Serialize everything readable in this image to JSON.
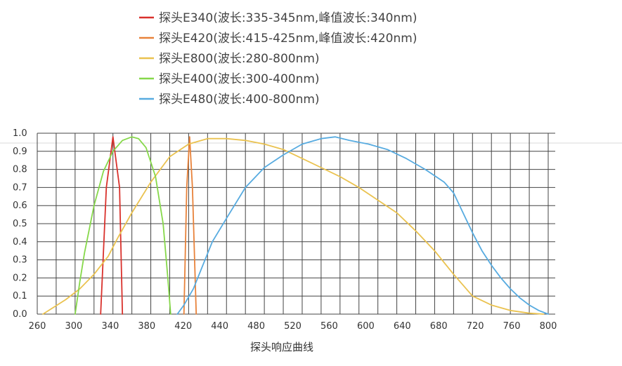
{
  "chart_data": {
    "type": "line",
    "title": "",
    "xlabel": "探头响应曲线",
    "ylabel": "",
    "xlim": [
      260,
      800
    ],
    "ylim": [
      0.0,
      1.0
    ],
    "grid": true,
    "legend_position": "top",
    "x_ticks": [
      "260",
      "300",
      "340",
      "380",
      "420",
      "440",
      "480",
      "520",
      "560",
      "600",
      "640",
      "680",
      "720",
      "760",
      "800"
    ],
    "x_tick_values": [
      260,
      300,
      340,
      380,
      420,
      440,
      480,
      520,
      560,
      600,
      640,
      680,
      720,
      760,
      800
    ],
    "y_ticks": [
      "0.0",
      "0.1",
      "0.2",
      "0.3",
      "0.4",
      "0.5",
      "0.6",
      "0.7",
      "0.8",
      "0.9",
      "1.0"
    ],
    "y_tick_values": [
      0.0,
      0.1,
      0.2,
      0.3,
      0.4,
      0.5,
      0.6,
      0.7,
      0.8,
      0.9,
      1.0
    ],
    "series": [
      {
        "name": "探头E340(波长:335-345nm,峰值波长:340nm)",
        "color": "#d9312c",
        "x": [
          327,
          333,
          340,
          347,
          350
        ],
        "y": [
          0.0,
          0.7,
          0.98,
          0.7,
          0.0
        ]
      },
      {
        "name": "探头E420(波长:415-425nm,峰值波长:420nm)",
        "color": "#e8823a",
        "x": [
          415,
          418,
          421,
          424,
          428
        ],
        "y": [
          0.0,
          0.7,
          0.98,
          0.7,
          0.0
        ]
      },
      {
        "name": "探头E800(波长:280-800nm)",
        "color": "#eac24f",
        "x": [
          266,
          275,
          290,
          305,
          320,
          335,
          345,
          360,
          380,
          400,
          420,
          440,
          460,
          480,
          500,
          520,
          540,
          560,
          580,
          600,
          620,
          640,
          660,
          680,
          700,
          720,
          740,
          760,
          780,
          795
        ],
        "y": [
          0.0,
          0.03,
          0.08,
          0.14,
          0.22,
          0.32,
          0.42,
          0.56,
          0.73,
          0.87,
          0.94,
          0.97,
          0.97,
          0.96,
          0.94,
          0.91,
          0.86,
          0.81,
          0.76,
          0.7,
          0.63,
          0.56,
          0.46,
          0.35,
          0.22,
          0.1,
          0.05,
          0.02,
          0.005,
          0.0
        ]
      },
      {
        "name": "探头E400(波长:300-400nm)",
        "color": "#86d84a",
        "x": [
          300,
          305,
          310,
          320,
          330,
          340,
          350,
          360,
          367,
          375,
          385,
          393,
          398,
          401
        ],
        "y": [
          0.0,
          0.18,
          0.34,
          0.6,
          0.79,
          0.9,
          0.96,
          0.98,
          0.97,
          0.92,
          0.76,
          0.5,
          0.2,
          0.0
        ]
      },
      {
        "name": "探头E480(波长:400-800nm)",
        "color": "#57abe0",
        "x": [
          408,
          415,
          425,
          435,
          445,
          460,
          480,
          500,
          520,
          540,
          560,
          575,
          590,
          610,
          630,
          650,
          670,
          690,
          700,
          710,
          720,
          730,
          740,
          750,
          760,
          770,
          780,
          790,
          800
        ],
        "y": [
          0.0,
          0.05,
          0.14,
          0.27,
          0.4,
          0.53,
          0.7,
          0.81,
          0.88,
          0.94,
          0.97,
          0.98,
          0.96,
          0.94,
          0.91,
          0.86,
          0.8,
          0.73,
          0.67,
          0.56,
          0.45,
          0.35,
          0.27,
          0.2,
          0.14,
          0.09,
          0.05,
          0.02,
          0.0
        ]
      }
    ]
  }
}
